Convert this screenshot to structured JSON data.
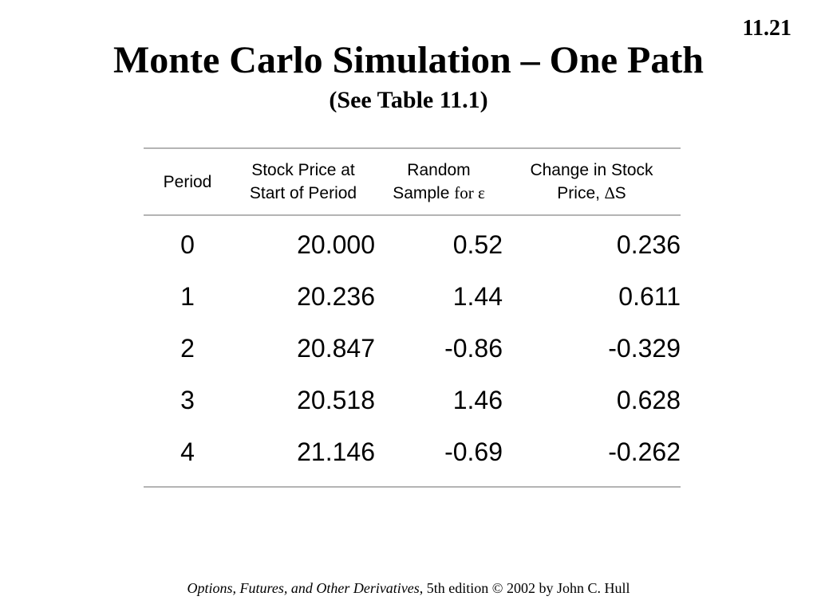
{
  "slide_number": "11.21",
  "title": "Monte Carlo Simulation – One Path",
  "subtitle": "(See Table 11.1)",
  "table": {
    "headers": {
      "period": "Period",
      "stock_price_line1": "Stock Price at",
      "stock_price_line2": "Start of Period",
      "random_line1": "Random",
      "random_line2_a": "Sample ",
      "random_line2_b": "for ε",
      "change_line1": "Change in Stock",
      "change_line2_a": "Price, ",
      "change_line2_b": "∆",
      "change_line2_c": "S"
    },
    "rows": [
      {
        "period": "0",
        "stock_price": "20.000",
        "random_sample": "0.52",
        "change": "0.236"
      },
      {
        "period": "1",
        "stock_price": "20.236",
        "random_sample": "1.44",
        "change": "0.611"
      },
      {
        "period": "2",
        "stock_price": "20.847",
        "random_sample": "-0.86",
        "change": "-0.329"
      },
      {
        "period": "3",
        "stock_price": "20.518",
        "random_sample": "1.46",
        "change": "0.628"
      },
      {
        "period": "4",
        "stock_price": "21.146",
        "random_sample": "-0.69",
        "change": "-0.262"
      }
    ]
  },
  "footer": {
    "book_title": "Options, Futures, and Other Derivatives",
    "rest": ", 5th edition  © 2002 by John C. Hull"
  }
}
